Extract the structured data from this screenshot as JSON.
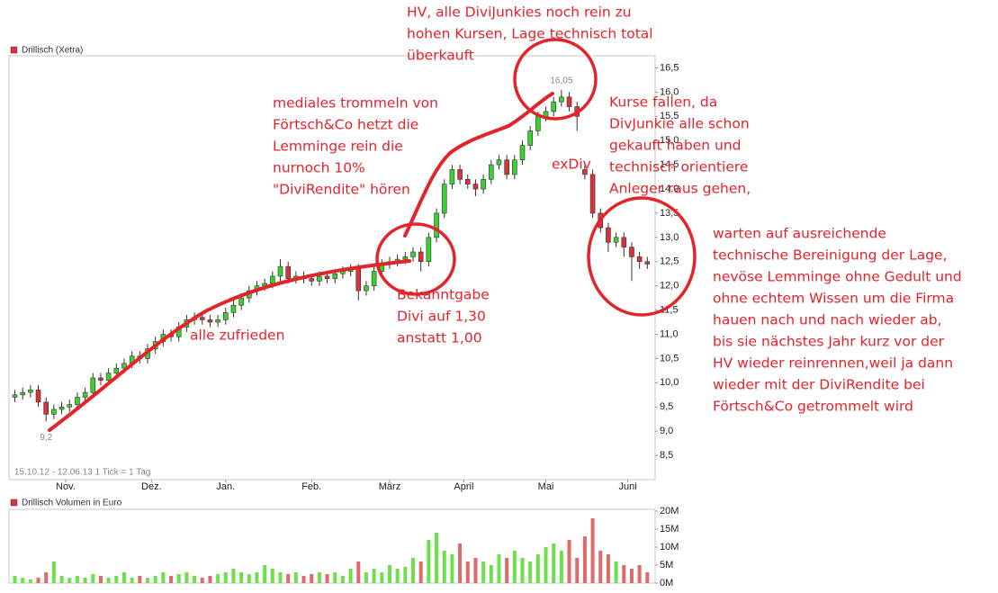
{
  "chart_data": {
    "type": "candlestick",
    "title": "Drillisch (Xetra)",
    "subtitle": "15.10.12 - 12.06.13   1 Tick = 1 Tag",
    "x": [
      0,
      2,
      4,
      6,
      8,
      10,
      12,
      14,
      16,
      18,
      20,
      22,
      24,
      26,
      28,
      30,
      32,
      34,
      36,
      38,
      40,
      42,
      44,
      46,
      48,
      50,
      52,
      54,
      56,
      58,
      60,
      62,
      64,
      66,
      68,
      70,
      72,
      74,
      76,
      78,
      80,
      82,
      84,
      86,
      88,
      90,
      92,
      94,
      96,
      98,
      100,
      102,
      104,
      106,
      108,
      110,
      112,
      114,
      116,
      118,
      120,
      122,
      124,
      126,
      128,
      130,
      132,
      134,
      136,
      138,
      140,
      142,
      144,
      146,
      148,
      150,
      152,
      154,
      156,
      158,
      160,
      162
    ],
    "open": [
      9.7,
      9.75,
      9.8,
      9.85,
      9.6,
      9.35,
      9.45,
      9.5,
      9.55,
      9.7,
      9.8,
      10.1,
      10.05,
      10.2,
      10.3,
      10.4,
      10.55,
      10.5,
      10.7,
      10.85,
      11.0,
      10.95,
      11.15,
      11.3,
      11.35,
      11.3,
      11.25,
      11.3,
      11.45,
      11.6,
      11.75,
      11.9,
      12.0,
      12.05,
      12.2,
      12.4,
      12.15,
      12.2,
      12.15,
      12.1,
      12.2,
      12.15,
      12.25,
      12.3,
      12.35,
      11.9,
      12.0,
      12.3,
      12.45,
      12.5,
      12.55,
      12.6,
      12.7,
      12.5,
      13.0,
      13.5,
      14.1,
      14.4,
      14.2,
      14.1,
      14.0,
      14.2,
      14.5,
      14.6,
      14.3,
      14.6,
      14.9,
      15.2,
      15.5,
      15.6,
      15.8,
      15.9,
      15.7,
      14.4,
      14.3,
      13.5,
      13.2,
      12.9,
      13.0,
      12.8,
      12.6,
      12.5
    ],
    "high": [
      9.85,
      9.9,
      9.95,
      9.95,
      9.7,
      9.55,
      9.6,
      9.65,
      9.8,
      9.9,
      10.2,
      10.2,
      10.3,
      10.4,
      10.5,
      10.65,
      10.65,
      10.8,
      10.95,
      11.1,
      11.1,
      11.25,
      11.4,
      11.45,
      11.45,
      11.4,
      11.4,
      11.55,
      11.7,
      11.85,
      12.0,
      12.1,
      12.15,
      12.3,
      12.55,
      12.5,
      12.3,
      12.3,
      12.25,
      12.3,
      12.3,
      12.35,
      12.4,
      12.45,
      12.45,
      12.1,
      12.4,
      12.55,
      12.6,
      12.65,
      12.7,
      12.8,
      12.8,
      13.1,
      13.6,
      14.2,
      14.5,
      14.5,
      14.3,
      14.2,
      14.3,
      14.6,
      14.7,
      14.7,
      14.7,
      15.0,
      15.3,
      15.6,
      15.7,
      15.9,
      16.05,
      16.0,
      15.8,
      14.5,
      14.4,
      13.6,
      13.3,
      13.1,
      13.1,
      12.9,
      12.7,
      12.6
    ],
    "low": [
      9.6,
      9.65,
      9.7,
      9.5,
      9.2,
      9.25,
      9.35,
      9.4,
      9.45,
      9.6,
      9.7,
      9.95,
      9.95,
      10.1,
      10.2,
      10.3,
      10.4,
      10.4,
      10.6,
      10.75,
      10.85,
      10.85,
      11.05,
      11.2,
      11.2,
      11.15,
      11.15,
      11.2,
      11.35,
      11.5,
      11.65,
      11.8,
      11.9,
      11.95,
      12.1,
      12.05,
      12.05,
      12.05,
      12.0,
      12.0,
      12.05,
      12.05,
      12.15,
      12.2,
      11.7,
      11.8,
      11.9,
      12.2,
      12.35,
      12.4,
      12.45,
      12.5,
      12.3,
      12.4,
      12.9,
      13.4,
      14.0,
      14.1,
      14.0,
      13.85,
      13.9,
      14.1,
      14.4,
      14.2,
      14.2,
      14.5,
      14.8,
      15.1,
      15.4,
      15.5,
      15.7,
      15.6,
      15.2,
      14.2,
      13.4,
      13.1,
      12.7,
      12.8,
      12.6,
      12.1,
      12.35,
      12.35
    ],
    "close": [
      9.75,
      9.8,
      9.85,
      9.6,
      9.35,
      9.45,
      9.5,
      9.55,
      9.7,
      9.8,
      10.1,
      10.05,
      10.2,
      10.3,
      10.4,
      10.55,
      10.5,
      10.7,
      10.85,
      11.0,
      10.95,
      11.15,
      11.3,
      11.35,
      11.3,
      11.25,
      11.3,
      11.45,
      11.6,
      11.75,
      11.9,
      12.0,
      12.05,
      12.2,
      12.4,
      12.15,
      12.2,
      12.15,
      12.1,
      12.2,
      12.15,
      12.25,
      12.3,
      12.35,
      11.9,
      12.0,
      12.3,
      12.45,
      12.5,
      12.55,
      12.6,
      12.7,
      12.5,
      13.0,
      13.5,
      14.1,
      14.4,
      14.2,
      14.1,
      14.0,
      14.2,
      14.5,
      14.6,
      14.3,
      14.6,
      14.9,
      15.2,
      15.5,
      15.6,
      15.8,
      15.9,
      15.7,
      15.5,
      14.3,
      13.5,
      13.2,
      12.9,
      13.0,
      12.8,
      12.6,
      12.5,
      12.45
    ],
    "xlim": [
      -1.5,
      164
    ],
    "xticks": [
      {
        "value": 13,
        "label": "Nov."
      },
      {
        "value": 35,
        "label": "Dez."
      },
      {
        "value": 54,
        "label": "Jan."
      },
      {
        "value": 76,
        "label": "Feb."
      },
      {
        "value": 96,
        "label": "März"
      },
      {
        "value": 115,
        "label": "April"
      },
      {
        "value": 136,
        "label": "Mai"
      },
      {
        "value": 157,
        "label": "Juni"
      }
    ],
    "ylim": [
      8.0,
      16.75
    ],
    "yticks": [
      {
        "value": 8.5,
        "label": "8,5"
      },
      {
        "value": 9,
        "label": "9,0"
      },
      {
        "value": 9.5,
        "label": "9,5"
      },
      {
        "value": 10,
        "label": "10,0"
      },
      {
        "value": 10.5,
        "label": "10,5"
      },
      {
        "value": 11,
        "label": "11,0"
      },
      {
        "value": 11.5,
        "label": "11,5"
      },
      {
        "value": 12,
        "label": "12,0"
      },
      {
        "value": 12.5,
        "label": "12,5"
      },
      {
        "value": 13,
        "label": "13,0"
      },
      {
        "value": 13.5,
        "label": "13,5"
      },
      {
        "value": 14,
        "label": "14,0"
      },
      {
        "value": 14.5,
        "label": "14,5"
      },
      {
        "value": 15,
        "label": "15,0"
      },
      {
        "value": 15.5,
        "label": "15,5"
      },
      {
        "value": 16,
        "label": "16,0"
      },
      {
        "value": 16.5,
        "label": "16,5"
      }
    ],
    "colors": {
      "up": "#39d12f",
      "down": "#d8333a"
    },
    "high_label": "16,05",
    "low_label": "9,2",
    "volume": {
      "title": "Drillisch Volumen in Euro",
      "values": [
        2,
        1.5,
        1,
        1.5,
        3,
        6,
        2,
        1.5,
        2,
        1.5,
        2.5,
        2,
        1.5,
        2,
        3,
        1.5,
        2,
        1.5,
        2,
        3,
        2,
        2.5,
        3,
        2,
        1.5,
        2,
        2.5,
        3,
        4,
        3,
        2.5,
        3,
        5,
        4,
        3,
        2.5,
        3,
        2,
        2.5,
        3,
        2.5,
        3,
        2,
        4,
        6,
        3,
        4,
        3,
        5,
        4,
        4.5,
        7,
        6,
        12,
        14,
        9,
        8,
        11,
        6,
        7,
        6,
        5,
        8,
        7,
        9,
        7,
        6,
        8,
        10,
        11,
        9,
        12,
        7,
        13,
        18,
        9,
        8,
        6,
        5,
        4,
        5,
        3
      ],
      "ylim": [
        0,
        20
      ],
      "yticks": [
        {
          "value": 0,
          "label": "0M"
        },
        {
          "value": 5,
          "label": "5M"
        },
        {
          "value": 10,
          "label": "10M"
        },
        {
          "value": 15,
          "label": "15M"
        },
        {
          "value": 20,
          "label": "20M"
        }
      ]
    }
  },
  "annotations": [
    {
      "lines": [
        "HV, alle DiviJunkies noch rein zu",
        "hohen Kursen, Lage technisch total",
        "überkauft"
      ]
    },
    {
      "lines": [
        "mediales trommeln von",
        "Förtsch&Co hetzt die",
        "Lemminge rein die",
        "nurnoch 10%",
        "\"DiviRendite\" hören"
      ]
    },
    {
      "lines": [
        "Kurse fallen, da",
        "DivJunkie alle schon",
        "gekauft haben und",
        "technisch orientiere",
        "Anleger raus gehen,"
      ]
    },
    {
      "lines": [
        "exDiv"
      ]
    },
    {
      "lines": [
        "warten auf ausreichende",
        "technische Bereinigung der Lage,",
        "nevöse Lemminge ohne Gedult und",
        "ohne echtem Wissen um die Firma",
        "hauen nach und nach wieder ab,",
        "bis sie nächstes Jahr kurz vor der",
        "HV wieder reinrennen,weil ja dann",
        "wieder mit der DiviRendite bei",
        "Förtsch&Co getrommelt wird"
      ]
    },
    {
      "lines": [
        "alle zufrieden"
      ]
    },
    {
      "lines": [
        "Bekanntgabe",
        "Divi auf 1,30",
        "anstatt 1,00"
      ]
    }
  ]
}
